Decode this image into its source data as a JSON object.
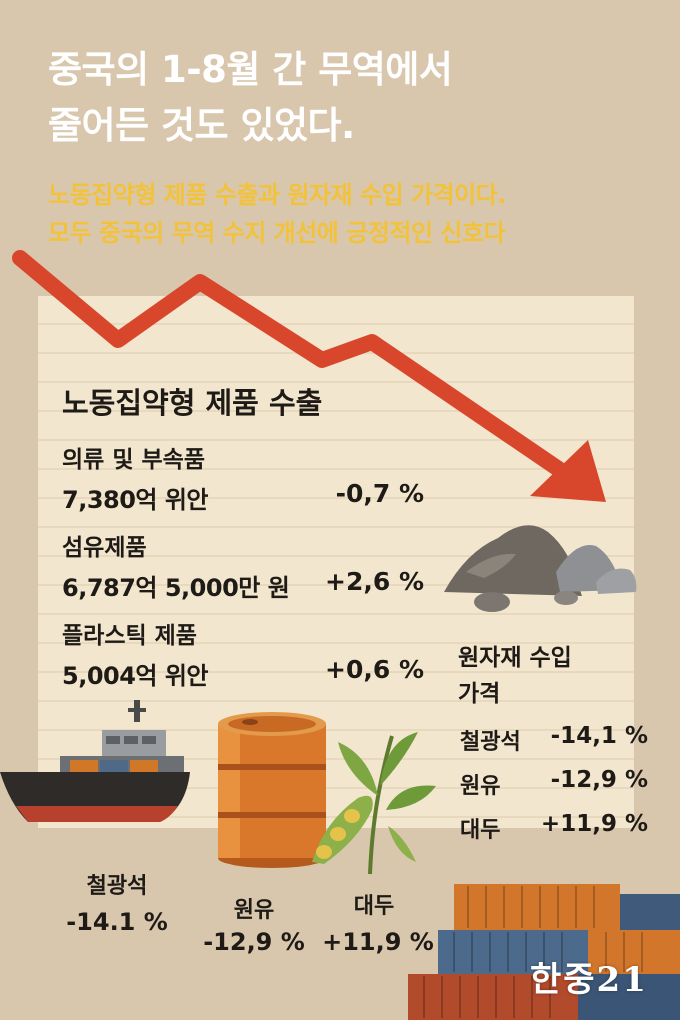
{
  "headline": {
    "line1": "중국의 1-8월 간 무역에서",
    "line2": "줄어든 것도 있었다."
  },
  "subheadline": {
    "line1": "노동집약형 제품 수출과 원자재 수입 가격이다.",
    "line2": "모두 중국의 무역 수지 개선에 긍정적인 신호다"
  },
  "labor_exports": {
    "title": "노동집약형 제품 수출",
    "items": [
      {
        "name": "의류 및 부속품",
        "value": "7,380억 위안",
        "change": "-0,7 %"
      },
      {
        "name": "섬유제품",
        "value": "6,787억 5,000만 원",
        "change": "+2,6 %"
      },
      {
        "name": "플라스틱 제품",
        "value": "5,004억 위안",
        "change": "+0,6 %"
      }
    ]
  },
  "raw_imports": {
    "title_line1": "원자재 수입",
    "title_line2": "가격",
    "items": [
      {
        "name": "철광석",
        "change": "-14,1 %"
      },
      {
        "name": "원유",
        "change": "-12,9 %"
      },
      {
        "name": "대두",
        "change": "+11,9 %"
      }
    ]
  },
  "bottom_labels": [
    {
      "name": "철광석",
      "change": "-14.1 %"
    },
    {
      "name": "원유",
      "change": "-12,9 %"
    },
    {
      "name": "대두",
      "change": "+11,9 %"
    }
  ],
  "logo": "한중21",
  "colors": {
    "background": "#d9c7ad",
    "paper": "#f3e6cf",
    "arrow": "#d8472b",
    "headline": "#ffffff",
    "subheadline": "#f2c23a"
  },
  "icons": [
    "down-trend-arrow",
    "ore-pile-icon",
    "cargo-ship-icon",
    "oil-barrel-icon",
    "soybean-plant-icon",
    "shipping-containers-icon"
  ]
}
